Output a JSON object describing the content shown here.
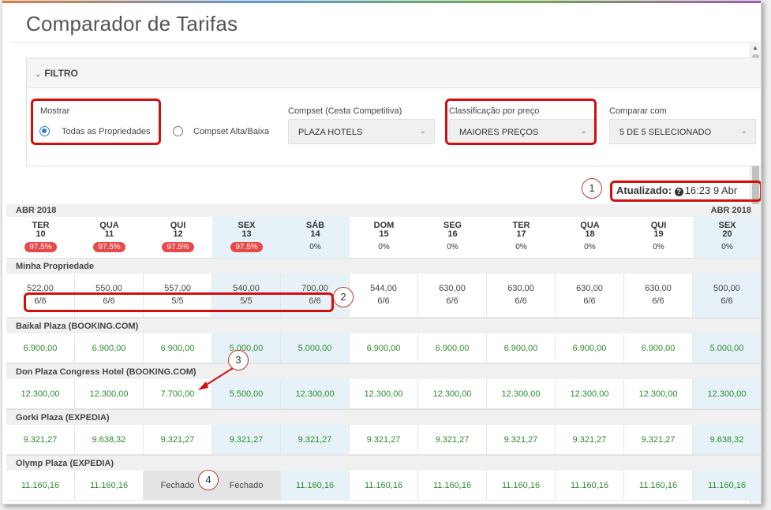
{
  "title": "Comparador de Tarifas",
  "filter": {
    "header": "FILTRO",
    "mostrar": {
      "label": "Mostrar",
      "options": [
        "Todas as Propriedades",
        "Compset Alta/Baixa"
      ],
      "selected_index": 0
    },
    "compset": {
      "label": "Compset (Cesta Competitiva)",
      "value": "PLAZA HOTELS"
    },
    "classificacao": {
      "label": "Classificação por preço",
      "value": "MAIORES PREÇOS"
    },
    "comparar": {
      "label": "Comparar com",
      "value": "5 DE 5 SELECIONADO"
    }
  },
  "updated": {
    "label": "Atualizado:",
    "value": "16:23 9 Abr"
  },
  "month_label_left": "ABR 2018",
  "month_label_right": "ABR 2018",
  "days": [
    {
      "name": "TER",
      "num": "10",
      "pct": "97.5%",
      "alert": true,
      "highlight": false
    },
    {
      "name": "QUA",
      "num": "11",
      "pct": "97.5%",
      "alert": true,
      "highlight": false
    },
    {
      "name": "QUI",
      "num": "12",
      "pct": "97.5%",
      "alert": true,
      "highlight": false
    },
    {
      "name": "SEX",
      "num": "13",
      "pct": "97.5%",
      "alert": true,
      "highlight": true
    },
    {
      "name": "SÁB",
      "num": "14",
      "pct": "0%",
      "alert": false,
      "highlight": true
    },
    {
      "name": "DOM",
      "num": "15",
      "pct": "0%",
      "alert": false,
      "highlight": false
    },
    {
      "name": "SEG",
      "num": "16",
      "pct": "0%",
      "alert": false,
      "highlight": false
    },
    {
      "name": "TER",
      "num": "17",
      "pct": "0%",
      "alert": false,
      "highlight": false
    },
    {
      "name": "QUA",
      "num": "18",
      "pct": "0%",
      "alert": false,
      "highlight": false
    },
    {
      "name": "QUI",
      "num": "19",
      "pct": "0%",
      "alert": false,
      "highlight": false
    },
    {
      "name": "SEX",
      "num": "20",
      "pct": "0%",
      "alert": false,
      "highlight": true
    }
  ],
  "my_property": {
    "name": "Minha Propriedade",
    "prices": [
      "522,00",
      "550,00",
      "557,00",
      "540,00",
      "700,00",
      "544,00",
      "630,00",
      "630,00",
      "630,00",
      "630,00",
      "500,00"
    ],
    "availability": [
      "6/6",
      "6/6",
      "5/5",
      "5/5",
      "6/6",
      "6/6",
      "6/6",
      "6/6",
      "6/6",
      "6/6",
      "6/6"
    ]
  },
  "competitors": [
    {
      "name": "Baikal Plaza (BOOKING.COM)",
      "values": [
        "6.900,00",
        "6.900,00",
        "6.900,00",
        "5.000,00",
        "5.000,00",
        "6.900,00",
        "6.900,00",
        "6.900,00",
        "6.900,00",
        "6.900,00",
        "5.000,00"
      ]
    },
    {
      "name": "Don Plaza Congress Hotel (BOOKING.COM)",
      "values": [
        "12.300,00",
        "12.300,00",
        "7.700,00",
        "5.500,00",
        "12.300,00",
        "12.300,00",
        "12.300,00",
        "12.300,00",
        "12.300,00",
        "12.300,00",
        "12.300,00"
      ]
    },
    {
      "name": "Gorki Plaza (EXPEDIA)",
      "values": [
        "9.321,27",
        "9.638,32",
        "9.321,27",
        "9.321,27",
        "9.321,27",
        "9.321,27",
        "9.321,27",
        "9.321,27",
        "9.321,27",
        "9.321,27",
        "9.638,32"
      ]
    },
    {
      "name": "Olymp Plaza (EXPEDIA)",
      "values": [
        "11.160,16",
        "11.160,16",
        "Fechado",
        "Fechado",
        "11.160,16",
        "11.160,16",
        "11.160,16",
        "11.160,16",
        "11.160,16",
        "11.160,16",
        "11.160,16"
      ]
    }
  ],
  "closed_label": "Fechado",
  "annotations": [
    "1",
    "2",
    "3",
    "4"
  ],
  "colors": {
    "accent": "#2a7bd3",
    "alert": "#e84a4a",
    "price_green": "#2e8b2e",
    "callout_red": "#d10f0f",
    "highlight": "#e6f2f8"
  },
  "icons": {
    "question": "question-circle-icon",
    "chevron": "chevron-down-icon"
  }
}
